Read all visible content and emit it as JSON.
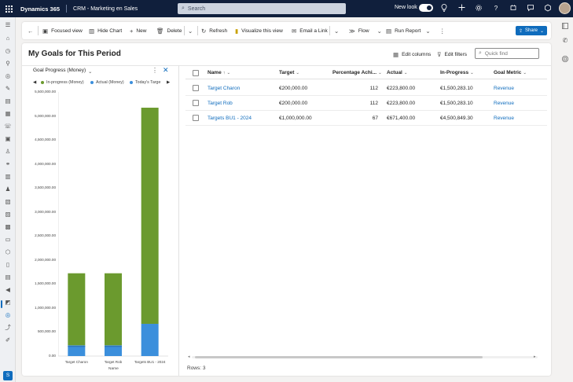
{
  "topbar": {
    "app_name": "Dynamics 365",
    "app_area": "CRM - Marketing en Sales",
    "search_placeholder": "Search",
    "new_look_label": "New look",
    "new_look_enabled": true
  },
  "command_bar": {
    "focused_view": "Focused view",
    "hide_chart": "Hide Chart",
    "new": "New",
    "delete": "Delete",
    "refresh": "Refresh",
    "visualize": "Visualize this view",
    "email_link": "Email a Link",
    "flow": "Flow",
    "run_report": "Run Report",
    "share": "Share"
  },
  "view": {
    "title": "My Goals for This Period",
    "edit_columns": "Edit columns",
    "edit_filters": "Edit filters",
    "quick_find_placeholder": "Quick find"
  },
  "chart_panel": {
    "title": "Goal Progress (Money)",
    "legend": [
      {
        "name": "In-progress (Money)",
        "color": "#6b9a2e"
      },
      {
        "name": "Actual (Money)",
        "color": "#3b8fdc"
      },
      {
        "name": "Today's Targe",
        "color": "#3b8fdc"
      }
    ]
  },
  "chart_data": {
    "type": "bar",
    "stacked": true,
    "categories": [
      "Target Charon",
      "Target Rob",
      "Targets BU1 - 2024"
    ],
    "series": [
      {
        "name": "Actual (Money)",
        "color": "#3b8fdc",
        "values": [
          223800,
          223800,
          671400
        ]
      },
      {
        "name": "In-progress (Money)",
        "color": "#6b9a2e",
        "values": [
          1500283.1,
          1500283.1,
          4500849.3
        ]
      }
    ],
    "today_target_values": [
      200000,
      200000,
      null
    ],
    "xlabel": "Name",
    "ylabel": "",
    "ylim": [
      0,
      5500000
    ],
    "yticks": [
      "0.00",
      "500,000.00",
      "1,000,000.00",
      "1,500,000.00",
      "2,000,000.00",
      "2,500,000.00",
      "3,000,000.00",
      "3,500,000.00",
      "4,000,000.00",
      "4,500,000.00",
      "5,000,000.00",
      "5,500,000.00"
    ]
  },
  "grid": {
    "columns": [
      "Name",
      "Target",
      "Percentage Achi...",
      "Actual",
      "In-Progress",
      "Goal Metric"
    ],
    "rows": [
      {
        "name": "Target Charon",
        "target": "€200,000.00",
        "percentage": "112",
        "actual": "€223,800.00",
        "in_progress": "€1,500,283.10",
        "goal_metric": "Revenue"
      },
      {
        "name": "Target Rob",
        "target": "€200,000.00",
        "percentage": "112",
        "actual": "€223,800.00",
        "in_progress": "€1,500,283.10",
        "goal_metric": "Revenue"
      },
      {
        "name": "Targets BU1 - 2024",
        "target": "€1,000,000.00",
        "percentage": "67",
        "actual": "€671,400.00",
        "in_progress": "€4,500,849.30",
        "goal_metric": "Revenue"
      }
    ],
    "rows_count": "Rows: 3"
  },
  "user": {
    "initial": "S"
  }
}
